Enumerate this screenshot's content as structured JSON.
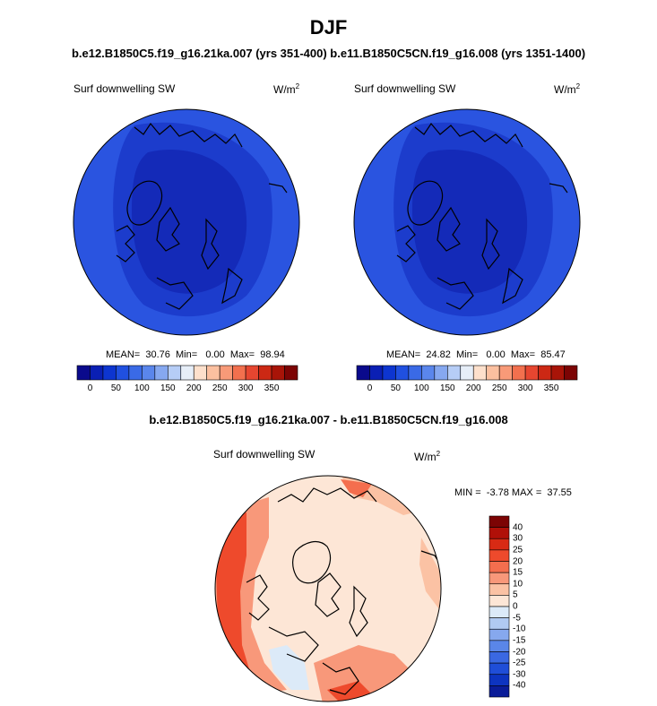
{
  "header": {
    "season": "DJF",
    "subtitle": "b.e12.B1850C5.f19_g16.21ka.007 (yrs 351-400) b.e11.B1850C5CN.f19_g16.008 (yrs 1351-1400)",
    "diff_title": "b.e12.B1850C5.f19_g16.21ka.007 - b.e11.B1850C5CN.f19_g16.008"
  },
  "panels": [
    {
      "variable": "Surf downwelling SW",
      "units_base": "W/m",
      "units_exp": "2",
      "stats": {
        "mean_label": "MEAN=",
        "mean": "30.76",
        "min_label": "Min=",
        "min": "0.00",
        "max_label": "Max=",
        "max": "98.94"
      }
    },
    {
      "variable": "Surf downwelling SW",
      "units_base": "W/m",
      "units_exp": "2",
      "stats": {
        "mean_label": "MEAN=",
        "mean": "24.82",
        "min_label": "Min=",
        "min": "0.00",
        "max_label": "Max=",
        "max": "85.47"
      }
    }
  ],
  "diff_panel": {
    "variable": "Surf downwelling SW",
    "units_base": "W/m",
    "units_exp": "2",
    "min_label": "MIN =",
    "min": "-3.78",
    "max_label": "MAX =",
    "max": "37.55"
  },
  "colorbar_abs": {
    "colors": [
      "#0a0a8c",
      "#0a1fb4",
      "#0d35d0",
      "#2050e0",
      "#3a6ae6",
      "#5a86ec",
      "#86a8f0",
      "#b6cdf6",
      "#e6eef8",
      "#fde0cc",
      "#fbc0a0",
      "#f89a78",
      "#f2704e",
      "#e64630",
      "#cc2814",
      "#a81408",
      "#7c0404"
    ],
    "labels": [
      "0",
      "50",
      "100",
      "150",
      "200",
      "250",
      "300",
      "350"
    ]
  },
  "colorbar_diff": {
    "colors": [
      "#7c0404",
      "#b01008",
      "#d82a14",
      "#ee4a2c",
      "#f46e4e",
      "#f8987a",
      "#fbc2a4",
      "#fde6d6",
      "#dceaf8",
      "#b0caf2",
      "#86a8ee",
      "#5a86e8",
      "#3a68e2",
      "#1f4ed8",
      "#0d34c0",
      "#0a1c98"
    ],
    "labels": [
      "40",
      "30",
      "25",
      "20",
      "15",
      "10",
      "5",
      "0",
      "-5",
      "-10",
      "-15",
      "-20",
      "-25",
      "-30",
      "-40"
    ]
  },
  "chart_data": {
    "type": "heatmap",
    "projection": "north polar stereographic",
    "panels": [
      {
        "case": "b.e12.B1850C5.f19_g16.21ka.007",
        "variable": "Surf downwelling SW",
        "mean": 30.76,
        "min": 0.0,
        "max": 98.94
      },
      {
        "case": "b.e11.B1850C5CN.f19_g16.008",
        "variable": "Surf downwelling SW",
        "mean": 24.82,
        "min": 0.0,
        "max": 85.47
      },
      {
        "case": "difference",
        "variable": "Surf downwelling SW",
        "min": -3.78,
        "max": 37.55
      }
    ],
    "abs_levels": [
      0,
      350
    ],
    "diff_levels": [
      -40,
      -30,
      -25,
      -20,
      -15,
      -10,
      -5,
      0,
      5,
      10,
      15,
      20,
      25,
      30,
      40
    ]
  }
}
